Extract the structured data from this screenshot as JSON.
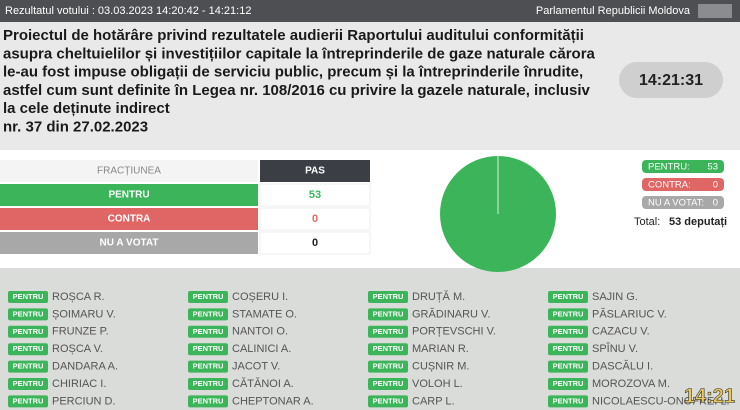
{
  "header": {
    "left": "Rezultatul votului : 03.03.2023 14:20:42 - 14:21:12",
    "right": "Parlamentul Republicii Moldova"
  },
  "title_lines": [
    "Proiectul de hotărâre privind rezultatele audierii Raportului auditului conformității",
    "asupra cheltuielilor și investițiilor capitale la întreprinderile de gaze naturale cărora",
    "le-au fost impuse obligații de serviciu public, precum și la întreprinderile înrudite,",
    "astfel cum sunt definite în Legea nr. 108/2016 cu privire la gazele naturale, inclusiv",
    "la cele deținute indirect",
    "nr. 37 din 27.02.2023"
  ],
  "clock": "14:21:31",
  "table": {
    "header": [
      "FRACȚIUNEA",
      "PAS"
    ],
    "rows": [
      {
        "label": "PENTRU",
        "legend": "PENTRU:",
        "value": 53,
        "color": "#3cb55a",
        "text_color": "#3cb55a"
      },
      {
        "label": "CONTRA",
        "legend": "CONTRA:",
        "value": 0,
        "color": "#e06666",
        "text_color": "#e06666"
      },
      {
        "label": "NU A VOTAT",
        "legend": "NU A VOTAT:",
        "value": 0,
        "color": "#a8a8a8",
        "text_color": "#222222"
      }
    ]
  },
  "total": {
    "label": "Total:",
    "value": "53 deputați"
  },
  "deputies": [
    [
      {
        "name": "ROȘCA R.",
        "vote": "PENTRU"
      },
      {
        "name": "COȘERU I.",
        "vote": "PENTRU"
      },
      {
        "name": "DRUȚĂ M.",
        "vote": "PENTRU"
      },
      {
        "name": "SAJIN G.",
        "vote": "PENTRU"
      }
    ],
    [
      {
        "name": "ȘOIMARU V.",
        "vote": "PENTRU"
      },
      {
        "name": "STAMATE O.",
        "vote": "PENTRU"
      },
      {
        "name": "GRĂDINARU V.",
        "vote": "PENTRU"
      },
      {
        "name": "PĂSLARIUC V.",
        "vote": "PENTRU"
      }
    ],
    [
      {
        "name": "FRUNZE P.",
        "vote": "PENTRU"
      },
      {
        "name": "NANTOI O.",
        "vote": "PENTRU"
      },
      {
        "name": "PORȚEVSCHI V.",
        "vote": "PENTRU"
      },
      {
        "name": "CAZACU V.",
        "vote": "PENTRU"
      }
    ],
    [
      {
        "name": "ROȘCA V.",
        "vote": "PENTRU"
      },
      {
        "name": "CALINICI A.",
        "vote": "PENTRU"
      },
      {
        "name": "MARIAN R.",
        "vote": "PENTRU"
      },
      {
        "name": "SPÎNU V.",
        "vote": "PENTRU"
      }
    ],
    [
      {
        "name": "DANDARA A.",
        "vote": "PENTRU"
      },
      {
        "name": "JACOT V.",
        "vote": "PENTRU"
      },
      {
        "name": "CUȘNIR M.",
        "vote": "PENTRU"
      },
      {
        "name": "DASCĂLU I.",
        "vote": "PENTRU"
      }
    ],
    [
      {
        "name": "CHIRIAC I.",
        "vote": "PENTRU"
      },
      {
        "name": "CĂTĂNOI A.",
        "vote": "PENTRU"
      },
      {
        "name": "VOLOH L.",
        "vote": "PENTRU"
      },
      {
        "name": "MOROZOVA M.",
        "vote": "PENTRU"
      }
    ],
    [
      {
        "name": "PERCIUN D.",
        "vote": "PENTRU"
      },
      {
        "name": "CHEPTONAR A.",
        "vote": "PENTRU"
      },
      {
        "name": "CARP L.",
        "vote": "PENTRU"
      },
      {
        "name": "NICOLAESCU-ONOFREI L.",
        "vote": "PENTRU"
      }
    ]
  ],
  "overlay_time": "14:21"
}
